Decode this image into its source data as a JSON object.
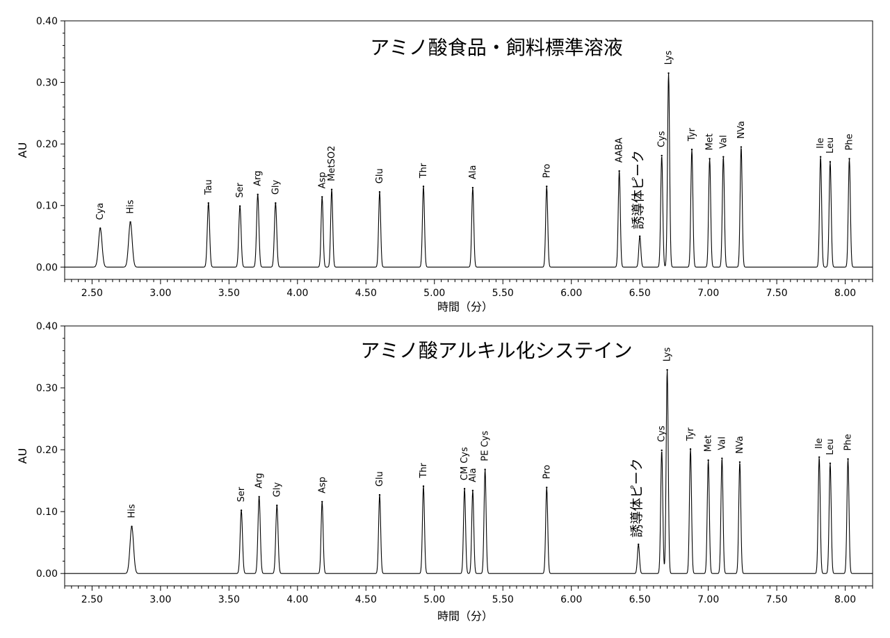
{
  "chart_data": [
    {
      "type": "line",
      "title": "アミノ酸食品・飼料標準溶液",
      "xlabel": "時間（分）",
      "ylabel": "AU",
      "xlim": [
        2.3,
        8.2
      ],
      "ylim": [
        -0.02,
        0.4
      ],
      "x_ticks": [
        "2.50",
        "3.00",
        "3.50",
        "4.00",
        "4.50",
        "5.00",
        "5.50",
        "6.00",
        "6.50",
        "7.00",
        "7.50",
        "8.00"
      ],
      "y_ticks": [
        "0.00",
        "0.10",
        "0.20",
        "0.30",
        "0.40"
      ],
      "grid": false,
      "peaks": [
        {
          "label": "Cya",
          "x": 2.56,
          "y": 0.063
        },
        {
          "label": "His",
          "x": 2.78,
          "y": 0.073
        },
        {
          "label": "Tau",
          "x": 3.35,
          "y": 0.104
        },
        {
          "label": "Ser",
          "x": 3.58,
          "y": 0.099
        },
        {
          "label": "Arg",
          "x": 3.71,
          "y": 0.118
        },
        {
          "label": "Gly",
          "x": 3.84,
          "y": 0.104
        },
        {
          "label": "Asp",
          "x": 4.18,
          "y": 0.114
        },
        {
          "label": "MetSO2",
          "x": 4.25,
          "y": 0.126
        },
        {
          "label": "Glu",
          "x": 4.6,
          "y": 0.122
        },
        {
          "label": "Thr",
          "x": 4.92,
          "y": 0.131
        },
        {
          "label": "Ala",
          "x": 5.28,
          "y": 0.129
        },
        {
          "label": "Pro",
          "x": 5.82,
          "y": 0.131
        },
        {
          "label": "AABA",
          "x": 6.35,
          "y": 0.156
        },
        {
          "label": "誘導体ピーク",
          "x": 6.5,
          "y": 0.05
        },
        {
          "label": "Cys",
          "x": 6.66,
          "y": 0.181
        },
        {
          "label": "Lys",
          "x": 6.71,
          "y": 0.315
        },
        {
          "label": "Tyr",
          "x": 6.88,
          "y": 0.191
        },
        {
          "label": "Met",
          "x": 7.01,
          "y": 0.176
        },
        {
          "label": "Val",
          "x": 7.11,
          "y": 0.179
        },
        {
          "label": "NVa",
          "x": 7.24,
          "y": 0.195
        },
        {
          "label": "Ile",
          "x": 7.82,
          "y": 0.179
        },
        {
          "label": "Leu",
          "x": 7.89,
          "y": 0.171
        },
        {
          "label": "Phe",
          "x": 8.03,
          "y": 0.176
        }
      ]
    },
    {
      "type": "line",
      "title": "アミノ酸アルキル化システイン",
      "xlabel": "時間（分）",
      "ylabel": "AU",
      "xlim": [
        2.3,
        8.2
      ],
      "ylim": [
        -0.02,
        0.4
      ],
      "x_ticks": [
        "2.50",
        "3.00",
        "3.50",
        "4.00",
        "4.50",
        "5.00",
        "5.50",
        "6.00",
        "6.50",
        "7.00",
        "7.50",
        "8.00"
      ],
      "y_ticks": [
        "0.00",
        "0.10",
        "0.20",
        "0.30",
        "0.40"
      ],
      "grid": false,
      "peaks": [
        {
          "label": "His",
          "x": 2.79,
          "y": 0.076
        },
        {
          "label": "Ser",
          "x": 3.59,
          "y": 0.102
        },
        {
          "label": "Arg",
          "x": 3.72,
          "y": 0.124
        },
        {
          "label": "Gly",
          "x": 3.85,
          "y": 0.11
        },
        {
          "label": "Asp",
          "x": 4.18,
          "y": 0.116
        },
        {
          "label": "Glu",
          "x": 4.6,
          "y": 0.127
        },
        {
          "label": "Thr",
          "x": 4.92,
          "y": 0.141
        },
        {
          "label": "CM Cys",
          "x": 5.22,
          "y": 0.137
        },
        {
          "label": "Ala",
          "x": 5.28,
          "y": 0.134
        },
        {
          "label": "PE Cys",
          "x": 5.37,
          "y": 0.168
        },
        {
          "label": "Pro",
          "x": 5.82,
          "y": 0.139
        },
        {
          "label": "誘導体ピーク",
          "x": 6.49,
          "y": 0.047
        },
        {
          "label": "Cys",
          "x": 6.66,
          "y": 0.199
        },
        {
          "label": "Lys",
          "x": 6.7,
          "y": 0.329
        },
        {
          "label": "Tyr",
          "x": 6.87,
          "y": 0.201
        },
        {
          "label": "Met",
          "x": 7.0,
          "y": 0.183
        },
        {
          "label": "Val",
          "x": 7.1,
          "y": 0.186
        },
        {
          "label": "NVa",
          "x": 7.23,
          "y": 0.18
        },
        {
          "label": "Ile",
          "x": 7.81,
          "y": 0.188
        },
        {
          "label": "Leu",
          "x": 7.89,
          "y": 0.178
        },
        {
          "label": "Phe",
          "x": 8.02,
          "y": 0.185
        }
      ]
    }
  ]
}
